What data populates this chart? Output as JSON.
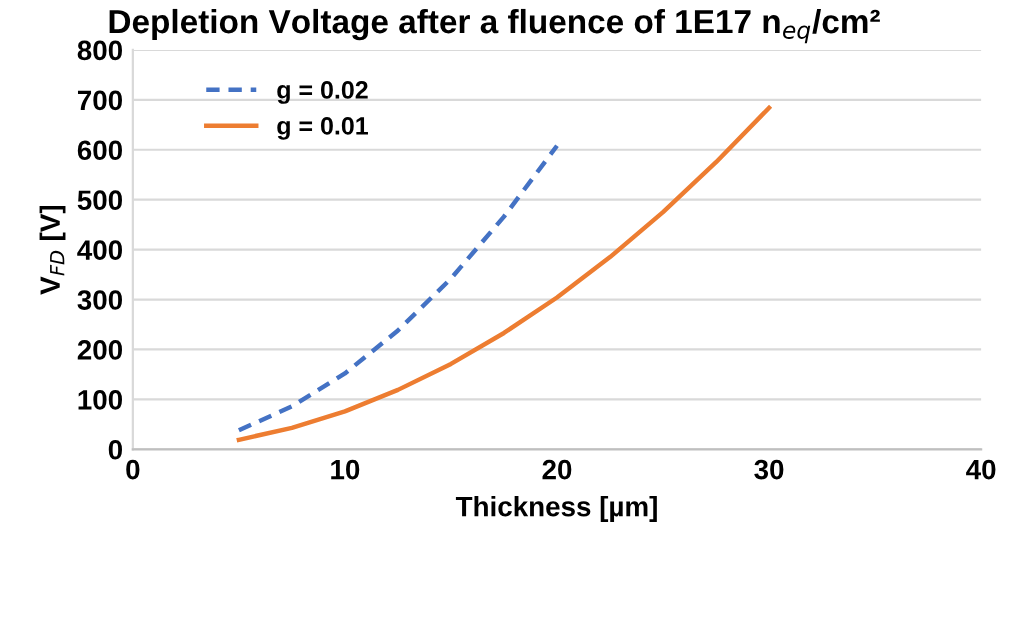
{
  "chart_data": {
    "type": "line",
    "title": "Depletion Voltage after a fluence of 1E17 n$_{eq}$/cm²",
    "xlabel": "Thickness [µm]",
    "ylabel": "V$_{FD}$ [V]",
    "xlim": [
      0,
      40
    ],
    "xticks": [
      0,
      10,
      20,
      30,
      40
    ],
    "ylim": [
      0,
      800
    ],
    "yticks": [
      0,
      100,
      200,
      300,
      400,
      500,
      600,
      700,
      800
    ],
    "grid": "y",
    "legend": "top left",
    "marker": "none",
    "series": [
      {
        "name": "g = 0.02",
        "color": "#4472c4",
        "line_style": "dashed",
        "x": [
          5,
          7.5,
          10,
          12.5,
          15,
          17.5,
          20
        ],
        "values": [
          38,
          86,
          152,
          238,
          342,
          466,
          608
        ]
      },
      {
        "name": "g = 0.01",
        "color": "#ed7d31",
        "line_style": "solid",
        "x": [
          5,
          7.5,
          10,
          12.5,
          15,
          17.5,
          20,
          22.5,
          25,
          27.5,
          30
        ],
        "values": [
          19,
          43,
          76,
          119,
          171,
          233,
          304,
          385,
          475,
          575,
          684
        ]
      }
    ]
  }
}
